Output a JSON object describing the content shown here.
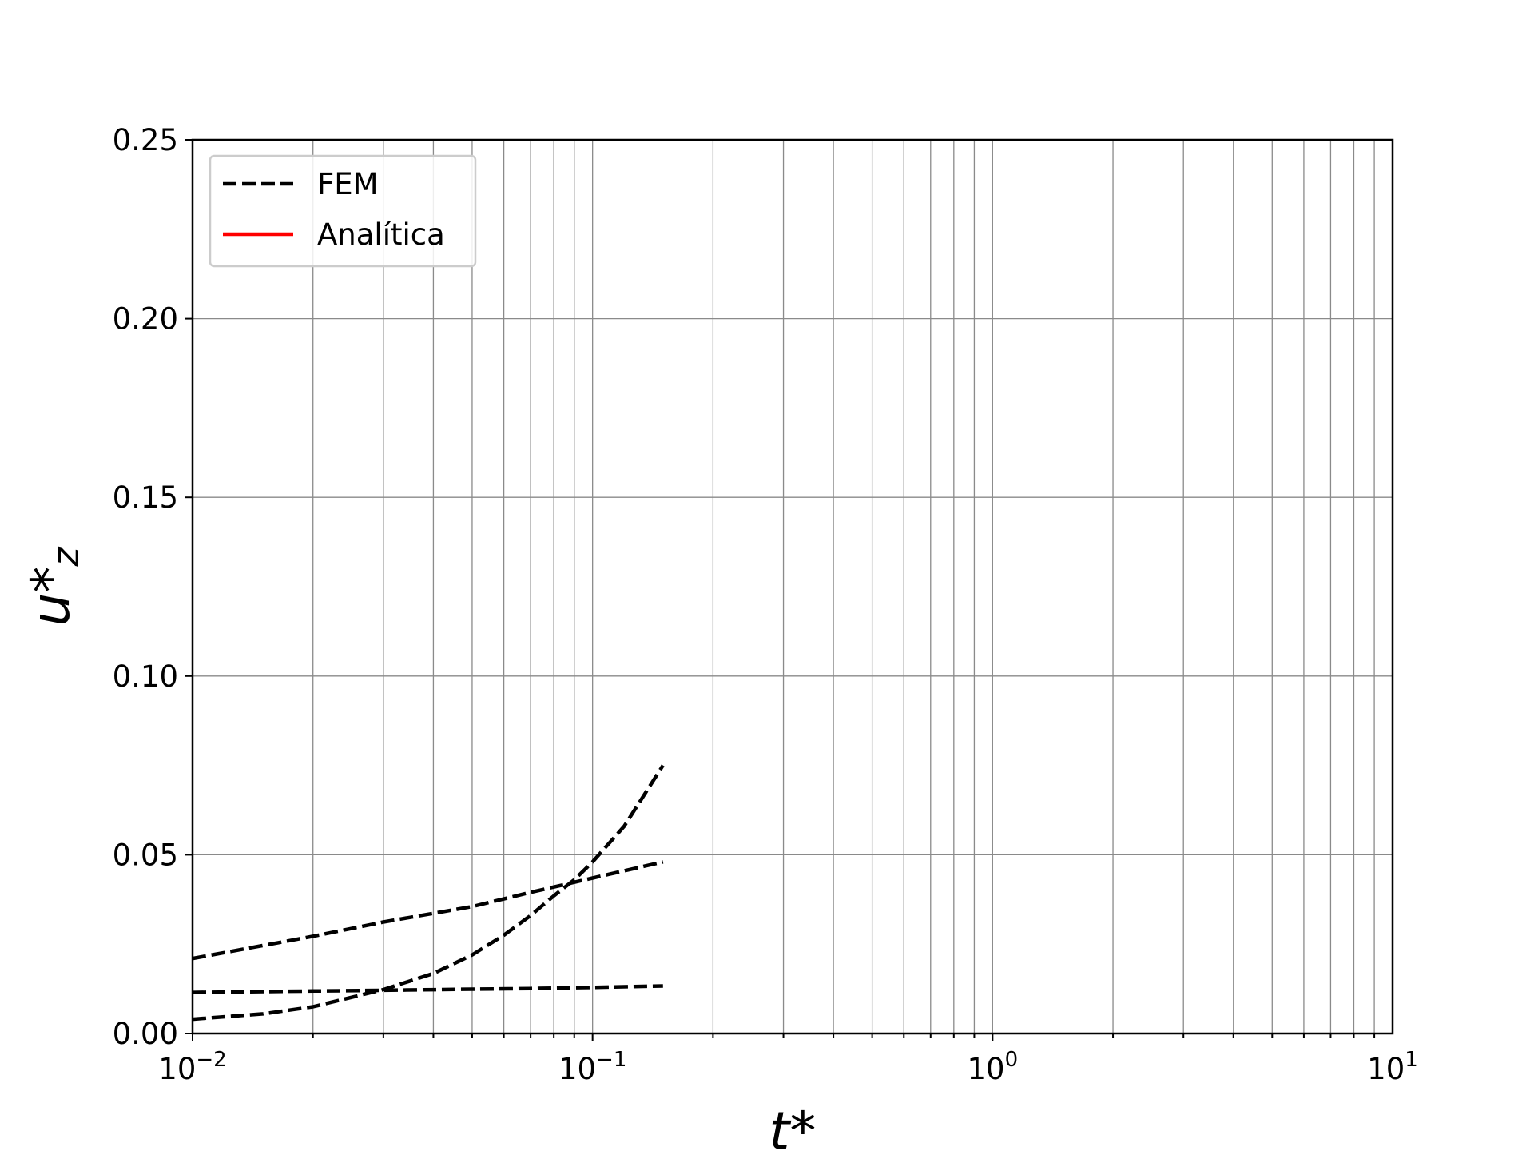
{
  "chart_data": {
    "type": "line",
    "title": "",
    "xlabel": "t*",
    "ylabel": "u*",
    "ylabel_subscript": "z",
    "xscale": "log",
    "xlim": [
      0.01,
      10
    ],
    "ylim": [
      0,
      0.25
    ],
    "x_ticks": [
      {
        "base": "10",
        "exp": "−2",
        "value": 0.01
      },
      {
        "base": "10",
        "exp": "−1",
        "value": 0.1
      },
      {
        "base": "10",
        "exp": "0",
        "value": 1
      },
      {
        "base": "10",
        "exp": "1",
        "value": 10
      }
    ],
    "y_ticks": [
      "0.00",
      "0.05",
      "0.10",
      "0.15",
      "0.20",
      "0.25"
    ],
    "grid": true,
    "legend_position": "top-left",
    "legend": [
      {
        "label": "FEM",
        "style": "dashed",
        "color": "#000000"
      },
      {
        "label": "Analítica",
        "style": "solid",
        "color": "#ff0000"
      }
    ],
    "series": [
      {
        "legend_ref": "FEM",
        "color": "#000000",
        "style": "dashed",
        "x": [
          0.01,
          0.015,
          0.02,
          0.03,
          0.04,
          0.05,
          0.06,
          0.07,
          0.08,
          0.09,
          0.1,
          0.12,
          0.15
        ],
        "y": [
          0.004,
          0.0055,
          0.0075,
          0.0123,
          0.0168,
          0.022,
          0.0275,
          0.033,
          0.0385,
          0.043,
          0.048,
          0.058,
          0.075
        ]
      },
      {
        "legend_ref": "FEM",
        "color": "#000000",
        "style": "dashed",
        "x": [
          0.01,
          0.02,
          0.03,
          0.05,
          0.07,
          0.1,
          0.15
        ],
        "y": [
          0.021,
          0.0272,
          0.0312,
          0.0355,
          0.0395,
          0.0435,
          0.048
        ]
      },
      {
        "legend_ref": "FEM",
        "color": "#000000",
        "style": "dashed",
        "x": [
          0.01,
          0.02,
          0.03,
          0.05,
          0.07,
          0.1,
          0.15
        ],
        "y": [
          0.0115,
          0.0119,
          0.0121,
          0.0124,
          0.0126,
          0.0129,
          0.0133
        ]
      }
    ]
  }
}
